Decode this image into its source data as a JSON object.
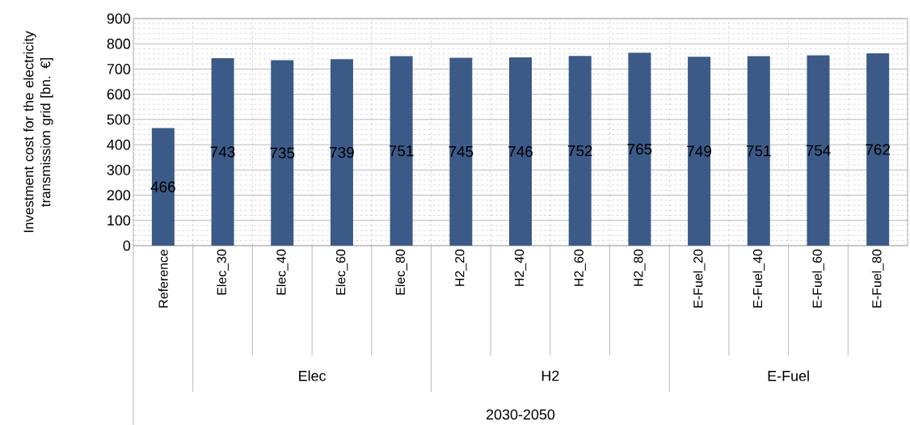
{
  "chart_data": {
    "type": "bar",
    "ylabel": "Investment  cost for the electricity transmission grid [bn. €]",
    "categories": [
      "Reference",
      "Elec_30",
      "Elec_40",
      "Elec_60",
      "Elec_80",
      "H2_20",
      "H2_40",
      "H2_60",
      "H2_80",
      "E-Fuel_20",
      "E-Fuel_40",
      "E-Fuel_60",
      "E-Fuel_80"
    ],
    "values": [
      466,
      743,
      735,
      739,
      751,
      745,
      746,
      752,
      765,
      749,
      751,
      754,
      762
    ],
    "color": "#3c5a87",
    "ylim": [
      0,
      900
    ],
    "yticks": [
      0,
      100,
      200,
      300,
      400,
      500,
      600,
      700,
      800,
      900
    ],
    "grid": true,
    "data_labels": true,
    "annotations": [
      "Elec",
      "H2",
      "E-Fuel",
      "2030-2050"
    ]
  }
}
